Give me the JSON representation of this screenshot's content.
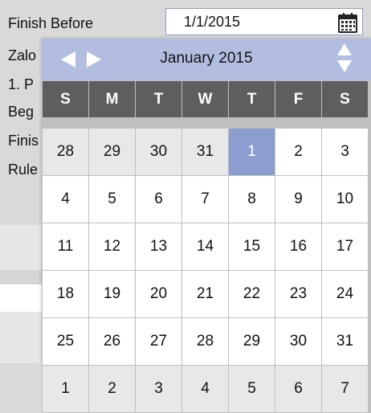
{
  "form": {
    "rows": [
      {
        "label": "Finish Before"
      },
      {
        "label": "Zalo"
      },
      {
        "label": "1. P"
      },
      {
        "label": "Beg"
      },
      {
        "label": "Finis"
      },
      {
        "label": "Rule"
      }
    ],
    "date_value": "1/1/2015",
    "calendar_button_icon": "calendar-icon"
  },
  "calendar": {
    "month_title": "January 2015",
    "weekdays": [
      "S",
      "M",
      "T",
      "W",
      "T",
      "F",
      "S"
    ],
    "weeks": [
      [
        {
          "d": "28",
          "m": "prev"
        },
        {
          "d": "29",
          "m": "prev"
        },
        {
          "d": "30",
          "m": "prev"
        },
        {
          "d": "31",
          "m": "prev"
        },
        {
          "d": "1",
          "m": "cur",
          "sel": true
        },
        {
          "d": "2",
          "m": "cur"
        },
        {
          "d": "3",
          "m": "cur"
        }
      ],
      [
        {
          "d": "4",
          "m": "cur"
        },
        {
          "d": "5",
          "m": "cur"
        },
        {
          "d": "6",
          "m": "cur"
        },
        {
          "d": "7",
          "m": "cur"
        },
        {
          "d": "8",
          "m": "cur"
        },
        {
          "d": "9",
          "m": "cur"
        },
        {
          "d": "10",
          "m": "cur"
        }
      ],
      [
        {
          "d": "11",
          "m": "cur"
        },
        {
          "d": "12",
          "m": "cur"
        },
        {
          "d": "13",
          "m": "cur"
        },
        {
          "d": "14",
          "m": "cur"
        },
        {
          "d": "15",
          "m": "cur"
        },
        {
          "d": "16",
          "m": "cur"
        },
        {
          "d": "17",
          "m": "cur"
        }
      ],
      [
        {
          "d": "18",
          "m": "cur"
        },
        {
          "d": "19",
          "m": "cur"
        },
        {
          "d": "20",
          "m": "cur"
        },
        {
          "d": "21",
          "m": "cur"
        },
        {
          "d": "22",
          "m": "cur"
        },
        {
          "d": "23",
          "m": "cur"
        },
        {
          "d": "24",
          "m": "cur"
        }
      ],
      [
        {
          "d": "25",
          "m": "cur"
        },
        {
          "d": "26",
          "m": "cur"
        },
        {
          "d": "27",
          "m": "cur"
        },
        {
          "d": "28",
          "m": "cur"
        },
        {
          "d": "29",
          "m": "cur"
        },
        {
          "d": "30",
          "m": "cur"
        },
        {
          "d": "31",
          "m": "cur"
        }
      ],
      [
        {
          "d": "1",
          "m": "next"
        },
        {
          "d": "2",
          "m": "next"
        },
        {
          "d": "3",
          "m": "next"
        },
        {
          "d": "4",
          "m": "next"
        },
        {
          "d": "5",
          "m": "next"
        },
        {
          "d": "6",
          "m": "next"
        },
        {
          "d": "7",
          "m": "next"
        }
      ]
    ],
    "icons": {
      "prev": "chevron-left-icon",
      "next": "chevron-right-icon",
      "spin_up": "arrow-up-icon",
      "spin_down": "arrow-down-icon"
    },
    "colors": {
      "header_bg": "#b3bde0",
      "weekday_bg": "#5e5e5e",
      "selected_bg": "#8c9ecf",
      "out_month_bg": "#e8e8e8"
    }
  }
}
